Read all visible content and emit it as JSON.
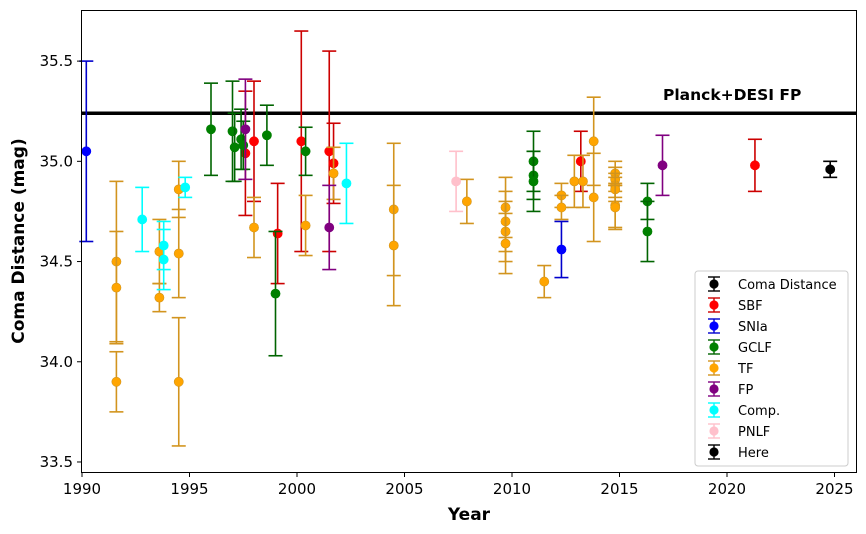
{
  "chart_data": {
    "type": "scatter",
    "xlabel": "Year",
    "ylabel": "Coma Distance (mag)",
    "xlim": [
      1990,
      2026
    ],
    "ylim": [
      33.45,
      35.75
    ],
    "xticks": [
      1990,
      1995,
      2000,
      2005,
      2010,
      2015,
      2020,
      2025
    ],
    "yticks": [
      33.5,
      34.0,
      34.5,
      35.0,
      35.5
    ],
    "grid": false,
    "legend_position": "lower-right",
    "reference_line": {
      "label": "Planck+DESI FP",
      "y": 35.24,
      "color": "#000000"
    },
    "series": [
      {
        "name": "Coma Distance",
        "color": "#000000",
        "points": []
      },
      {
        "name": "SBF",
        "color": "#ff0000",
        "points": [
          {
            "x": 1997.6,
            "y": 35.04,
            "err": 0.31
          },
          {
            "x": 1998.0,
            "y": 35.1,
            "err": 0.3
          },
          {
            "x": 1999.1,
            "y": 34.64,
            "err": 0.25
          },
          {
            "x": 2000.2,
            "y": 35.1,
            "err": 0.55
          },
          {
            "x": 2001.5,
            "y": 35.05,
            "err": 0.5
          },
          {
            "x": 2001.7,
            "y": 34.99,
            "err": 0.2
          },
          {
            "x": 2013.2,
            "y": 35.0,
            "err": 0.15
          },
          {
            "x": 2021.3,
            "y": 34.98,
            "err": 0.13
          }
        ]
      },
      {
        "name": "SNIa",
        "color": "#0000ff",
        "points": [
          {
            "x": 1990.2,
            "y": 35.05,
            "err": 0.45
          },
          {
            "x": 2012.3,
            "y": 34.56,
            "err": 0.14
          }
        ]
      },
      {
        "name": "GCLF",
        "color": "#008000",
        "points": [
          {
            "x": 1996.0,
            "y": 35.16,
            "err": 0.23
          },
          {
            "x": 1997.0,
            "y": 35.15,
            "err": 0.25
          },
          {
            "x": 1997.1,
            "y": 35.07,
            "err": 0.17
          },
          {
            "x": 1997.4,
            "y": 35.11,
            "err": 0.15
          },
          {
            "x": 1997.5,
            "y": 35.08,
            "err": 0.12
          },
          {
            "x": 1998.6,
            "y": 35.13,
            "err": 0.15
          },
          {
            "x": 1999.0,
            "y": 34.34,
            "err": 0.31
          },
          {
            "x": 2000.4,
            "y": 35.05,
            "err": 0.12
          },
          {
            "x": 2011.0,
            "y": 35.0,
            "err": 0.15
          },
          {
            "x": 2011.0,
            "y": 34.93,
            "err": 0.12
          },
          {
            "x": 2011.0,
            "y": 34.9,
            "err": 0.15
          },
          {
            "x": 2016.3,
            "y": 34.8,
            "err": 0.09
          },
          {
            "x": 2016.3,
            "y": 34.65,
            "err": 0.15
          }
        ]
      },
      {
        "name": "TF",
        "color": "#ffa500",
        "points": [
          {
            "x": 1991.6,
            "y": 34.5,
            "err": 0.4
          },
          {
            "x": 1991.6,
            "y": 34.37,
            "err": 0.28
          },
          {
            "x": 1991.6,
            "y": 33.9,
            "err": 0.15
          },
          {
            "x": 1993.6,
            "y": 34.55,
            "err": 0.16
          },
          {
            "x": 1993.6,
            "y": 34.32,
            "err": 0.07
          },
          {
            "x": 1994.5,
            "y": 34.86,
            "err": 0.14
          },
          {
            "x": 1994.5,
            "y": 34.54,
            "err": 0.22
          },
          {
            "x": 1994.5,
            "y": 33.9,
            "err": 0.32
          },
          {
            "x": 1998.0,
            "y": 34.67,
            "err": 0.15
          },
          {
            "x": 2000.4,
            "y": 34.68,
            "err": 0.15
          },
          {
            "x": 2001.7,
            "y": 34.94,
            "err": 0.13
          },
          {
            "x": 2004.5,
            "y": 34.76,
            "err": 0.33
          },
          {
            "x": 2004.5,
            "y": 34.58,
            "err": 0.3
          },
          {
            "x": 2007.9,
            "y": 34.8,
            "err": 0.11
          },
          {
            "x": 2009.7,
            "y": 34.77,
            "err": 0.15
          },
          {
            "x": 2009.7,
            "y": 34.7,
            "err": 0.15
          },
          {
            "x": 2009.7,
            "y": 34.65,
            "err": 0.15
          },
          {
            "x": 2009.7,
            "y": 34.59,
            "err": 0.15
          },
          {
            "x": 2011.5,
            "y": 34.4,
            "err": 0.08
          },
          {
            "x": 2012.3,
            "y": 34.83,
            "err": 0.06
          },
          {
            "x": 2012.3,
            "y": 34.77,
            "err": 0.06
          },
          {
            "x": 2012.9,
            "y": 34.9,
            "err": 0.13
          },
          {
            "x": 2013.3,
            "y": 34.9,
            "err": 0.13
          },
          {
            "x": 2013.8,
            "y": 35.1,
            "err": 0.22
          },
          {
            "x": 2013.8,
            "y": 34.82,
            "err": 0.22
          },
          {
            "x": 2014.8,
            "y": 34.94,
            "err": 0.06
          },
          {
            "x": 2014.8,
            "y": 34.91,
            "err": 0.06
          },
          {
            "x": 2014.8,
            "y": 34.88,
            "err": 0.06
          },
          {
            "x": 2014.8,
            "y": 34.86,
            "err": 0.06
          },
          {
            "x": 2014.8,
            "y": 34.78,
            "err": 0.11
          },
          {
            "x": 2014.8,
            "y": 34.77,
            "err": 0.11
          }
        ]
      },
      {
        "name": "FP",
        "color": "#800080",
        "points": [
          {
            "x": 1997.6,
            "y": 35.16,
            "err": 0.25
          },
          {
            "x": 2001.5,
            "y": 34.67,
            "err": 0.21
          },
          {
            "x": 2017.0,
            "y": 34.98,
            "err": 0.15
          }
        ]
      },
      {
        "name": "Comp.",
        "color": "#00ffff",
        "points": [
          {
            "x": 1992.8,
            "y": 34.71,
            "err": 0.16
          },
          {
            "x": 1993.8,
            "y": 34.58,
            "err": 0.12
          },
          {
            "x": 1993.8,
            "y": 34.51,
            "err": 0.15
          },
          {
            "x": 1994.8,
            "y": 34.87,
            "err": 0.05
          },
          {
            "x": 2002.3,
            "y": 34.89,
            "err": 0.2
          }
        ]
      },
      {
        "name": "PNLF",
        "color": "#ffc0cb",
        "points": [
          {
            "x": 2007.4,
            "y": 34.9,
            "err": 0.15
          }
        ]
      },
      {
        "name": "Here",
        "color": "#000000",
        "points": [
          {
            "x": 2024.8,
            "y": 34.96,
            "err": 0.04
          }
        ]
      }
    ]
  }
}
